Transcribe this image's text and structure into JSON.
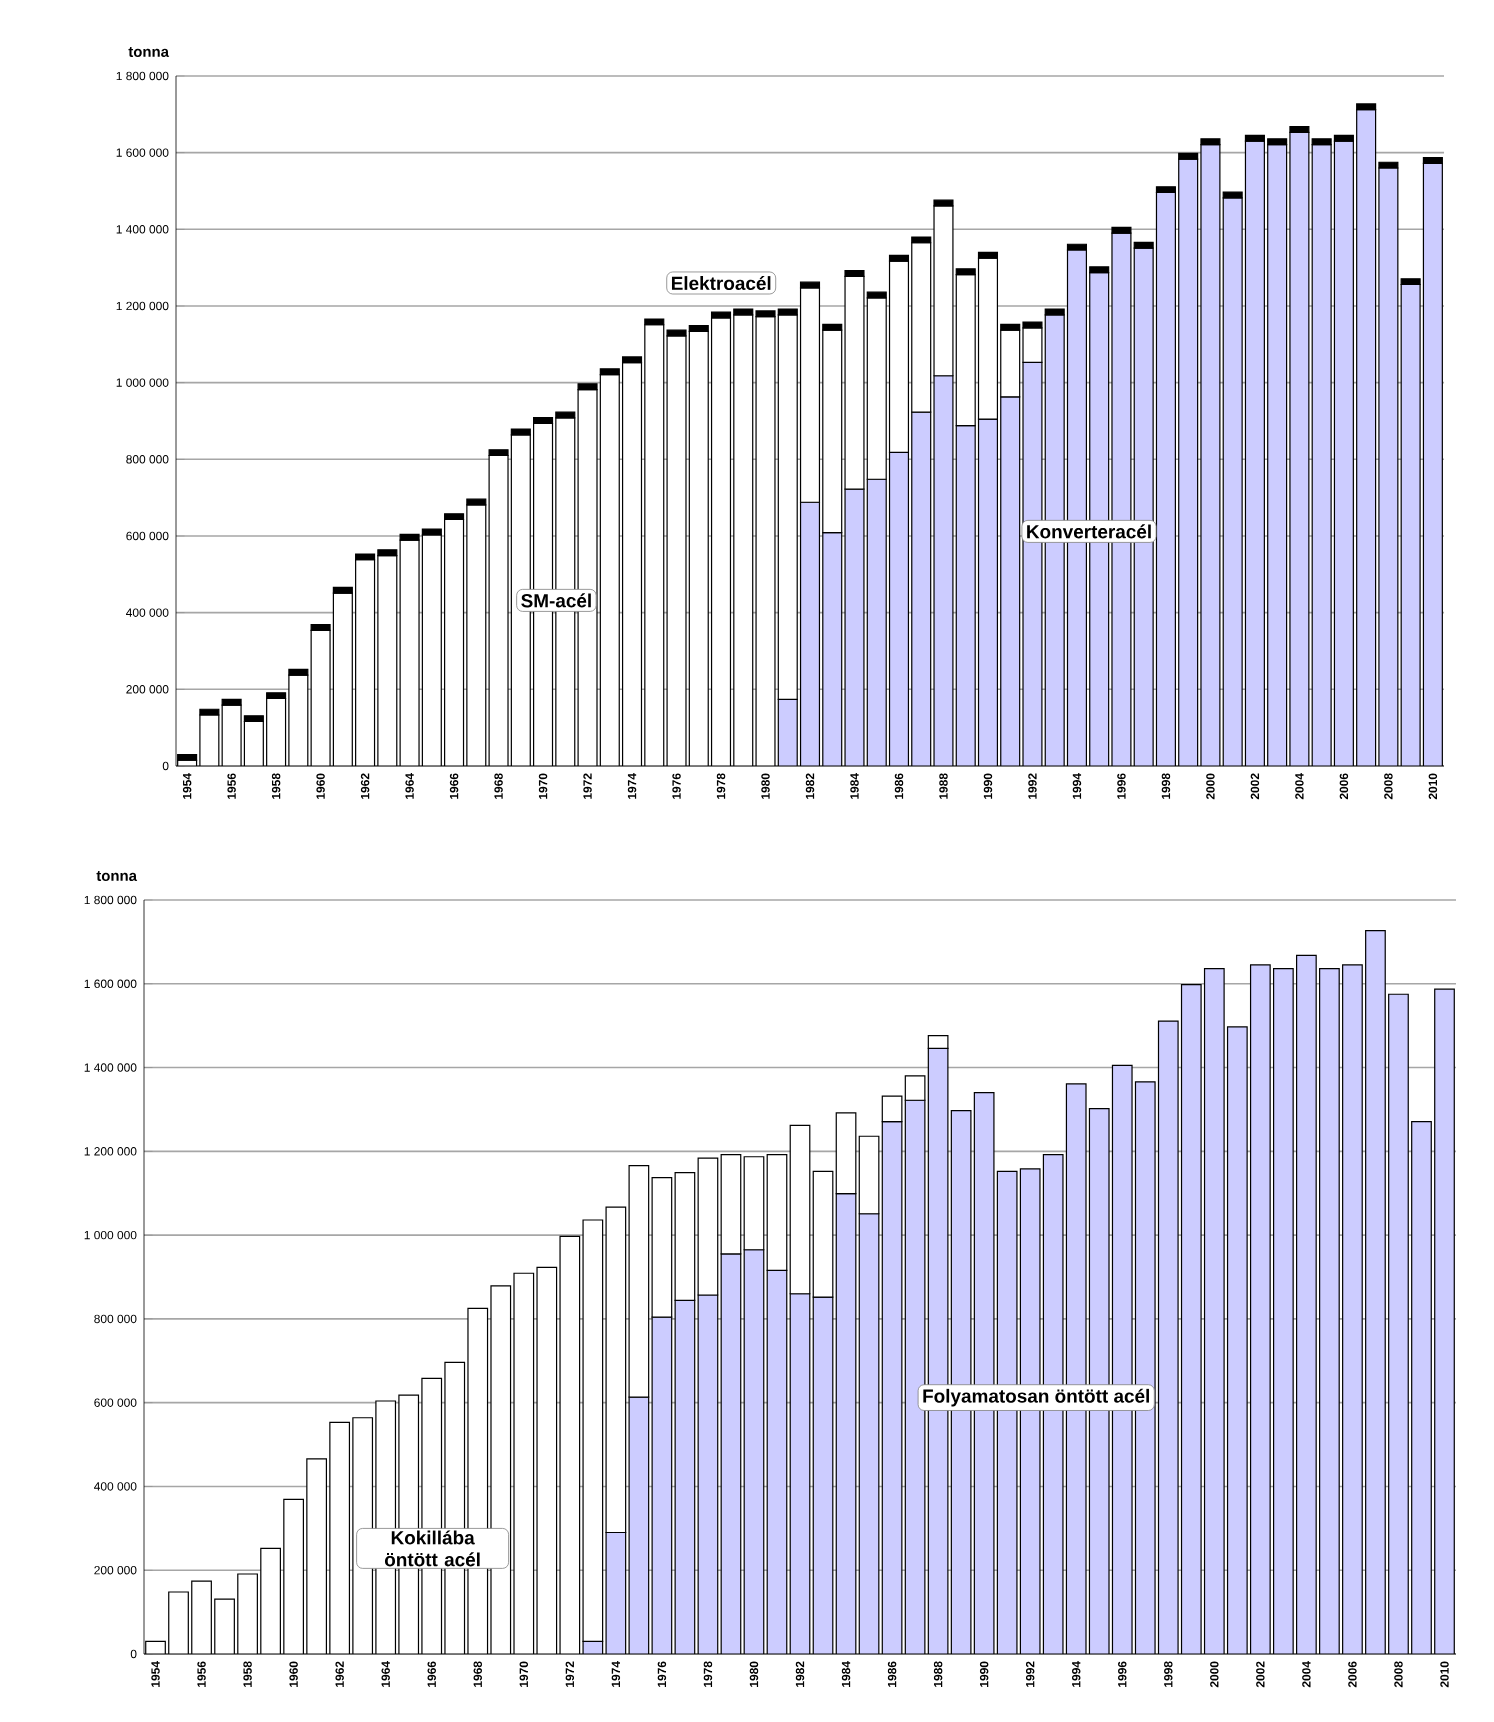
{
  "chart_data": [
    {
      "type": "bar",
      "stacked": true,
      "ylabel": "tonna",
      "grid": "y",
      "categories": [
        "1954",
        null,
        "1956",
        null,
        "1958",
        null,
        "1960",
        null,
        "1962",
        null,
        "1964",
        null,
        "1966",
        null,
        "1968",
        null,
        "1970",
        null,
        "1972",
        null,
        "1974",
        null,
        "1976",
        null,
        "1978",
        null,
        "1980",
        null,
        "1982",
        null,
        "1984",
        null,
        "1986",
        null,
        "1988",
        null,
        "1990",
        null,
        "1992",
        null,
        "1994",
        null,
        "1996",
        null,
        "1998",
        null,
        "2000",
        null,
        "2002",
        null,
        "2004",
        null,
        "2006",
        null,
        "2008",
        null,
        "2010"
      ],
      "ylim": [
        0,
        1800000
      ],
      "yticks": [
        {
          "value": 0,
          "label": "0"
        },
        {
          "value": 200000,
          "label": "200 000"
        },
        {
          "value": 400000,
          "label": "400 000"
        },
        {
          "value": 600000,
          "label": "600 000"
        },
        {
          "value": 800000,
          "label": "800 000"
        },
        {
          "value": 1000000,
          "label": "1 000 000"
        },
        {
          "value": 1200000,
          "label": "1 200 000"
        },
        {
          "value": 1400000,
          "label": "1 400 000"
        },
        {
          "value": 1600000,
          "label": "1 600 000"
        },
        {
          "value": 1800000,
          "label": "1 800 000"
        }
      ],
      "series": [
        {
          "name": "Konverteracél",
          "color": "#ccccff",
          "values": [
            0,
            0,
            0,
            0,
            0,
            0,
            0,
            0,
            0,
            0,
            0,
            0,
            0,
            0,
            0,
            0,
            0,
            0,
            0,
            0,
            0,
            0,
            0,
            0,
            0,
            0,
            0,
            174000,
            688000,
            609000,
            722000,
            748000,
            818000,
            923000,
            1018000,
            888000,
            905000,
            963000,
            1053000,
            1177000,
            1346000,
            1287000,
            1390000,
            1351000,
            1496000,
            1583000,
            1621000,
            1482000,
            1630000,
            1621000,
            1653000,
            1621000,
            1630000,
            1712000,
            1560000,
            1256000,
            1572000
          ]
        },
        {
          "name": "SM-acél",
          "color": "#ffffff",
          "values": [
            15000,
            133000,
            159000,
            116000,
            176000,
            237000,
            354000,
            451000,
            538000,
            549000,
            589000,
            603000,
            643000,
            681000,
            810000,
            864000,
            894000,
            908000,
            982000,
            1021000,
            1052000,
            1151000,
            1122000,
            1134000,
            1169000,
            1177000,
            1172000,
            1003000,
            559000,
            528000,
            555000,
            473000,
            499000,
            442000,
            443000,
            394000,
            420000,
            174000,
            90000,
            0,
            0,
            0,
            0,
            0,
            0,
            0,
            0,
            0,
            0,
            0,
            0,
            0,
            0,
            0,
            0,
            0,
            0
          ]
        },
        {
          "name": "Elektroacél",
          "color": "#000000",
          "values": [
            15000,
            15000,
            15000,
            15000,
            15000,
            15000,
            15000,
            15000,
            15000,
            15000,
            15000,
            15000,
            15000,
            15000,
            15000,
            15000,
            15000,
            15000,
            15000,
            15000,
            15000,
            15000,
            15000,
            15000,
            15000,
            15000,
            15000,
            15000,
            15000,
            15000,
            15000,
            15000,
            15000,
            15000,
            15000,
            15000,
            15000,
            15000,
            15000,
            15000,
            15000,
            15000,
            15000,
            15000,
            15000,
            15000,
            15000,
            15000,
            15000,
            15000,
            15000,
            15000,
            15000,
            15000,
            15000,
            15000,
            15000
          ]
        }
      ]
    },
    {
      "type": "bar",
      "stacked": true,
      "ylabel": "tonna",
      "grid": "y",
      "categories": [
        "1954",
        null,
        "1956",
        null,
        "1958",
        null,
        "1960",
        null,
        "1962",
        null,
        "1964",
        null,
        "1966",
        null,
        "1968",
        null,
        "1970",
        null,
        "1972",
        null,
        "1974",
        null,
        "1976",
        null,
        "1978",
        null,
        "1980",
        null,
        "1982",
        null,
        "1984",
        null,
        "1986",
        null,
        "1988",
        null,
        "1990",
        null,
        "1992",
        null,
        "1994",
        null,
        "1996",
        null,
        "1998",
        null,
        "2000",
        null,
        "2002",
        null,
        "2004",
        null,
        "2006",
        null,
        "2008",
        null,
        "2010"
      ],
      "ylim": [
        0,
        1800000
      ],
      "yticks": [
        {
          "value": 0,
          "label": "0"
        },
        {
          "value": 200000,
          "label": "200 000"
        },
        {
          "value": 400000,
          "label": "400 000"
        },
        {
          "value": 600000,
          "label": "600 000"
        },
        {
          "value": 800000,
          "label": "800 000"
        },
        {
          "value": 1000000,
          "label": "1 000 000"
        },
        {
          "value": 1200000,
          "label": "1 200 000"
        },
        {
          "value": 1400000,
          "label": "1 400 000"
        },
        {
          "value": 1600000,
          "label": "1 600 000"
        },
        {
          "value": 1800000,
          "label": "1 800 000"
        }
      ],
      "series": [
        {
          "name": "Folyamatosan öntött acél",
          "color": "#ccccff",
          "values": [
            0,
            0,
            0,
            0,
            0,
            0,
            0,
            0,
            0,
            0,
            0,
            0,
            0,
            0,
            0,
            0,
            0,
            0,
            0,
            30000,
            290000,
            613000,
            804000,
            844000,
            857000,
            955000,
            965000,
            916000,
            860000,
            852000,
            1099000,
            1051000,
            1271000,
            1322000,
            1446000,
            1297000,
            1340000,
            1152000,
            1158000,
            1192000,
            1361000,
            1302000,
            1405000,
            1366000,
            1511000,
            1598000,
            1636000,
            1497000,
            1645000,
            1636000,
            1668000,
            1636000,
            1645000,
            1727000,
            1575000,
            1271000,
            1587000
          ]
        },
        {
          "name": "Kokillába öntött acél",
          "color": "#ffffff",
          "values": [
            30000,
            148000,
            174000,
            131000,
            191000,
            252000,
            369000,
            466000,
            553000,
            564000,
            604000,
            618000,
            658000,
            696000,
            825000,
            879000,
            909000,
            923000,
            997000,
            1006000,
            777000,
            553000,
            333000,
            305000,
            327000,
            237000,
            222000,
            276000,
            402000,
            300000,
            193000,
            185000,
            61000,
            58000,
            30000,
            0,
            0,
            0,
            0,
            0,
            0,
            0,
            0,
            0,
            0,
            0,
            0,
            0,
            0,
            0,
            0,
            0,
            0,
            0,
            0,
            0,
            0
          ]
        }
      ]
    }
  ]
}
